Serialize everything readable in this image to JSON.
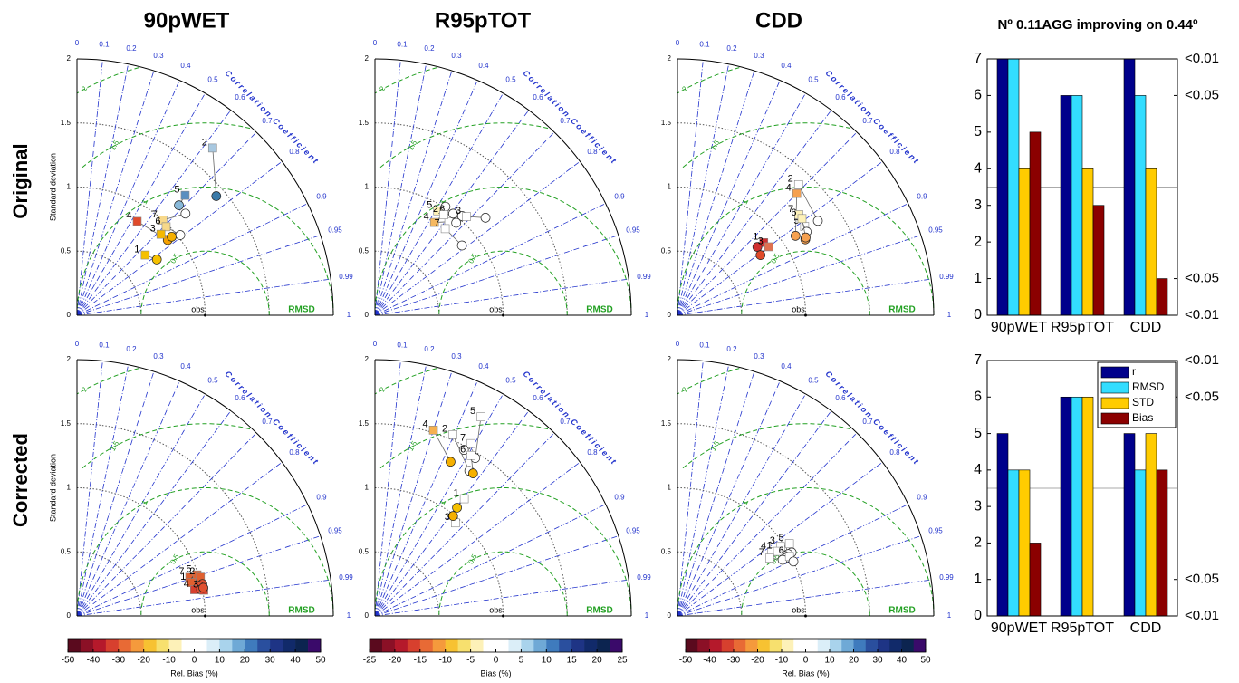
{
  "heading": "Nº 0.11AGG improving on 0.44º",
  "rows": [
    "Original",
    "Corrected"
  ],
  "taylor_axes": {
    "stdlim": [
      0,
      2
    ],
    "stdticks": [
      0,
      0.5,
      1,
      1.5,
      2
    ],
    "corrticks": [
      0,
      0.1,
      0.2,
      0.3,
      0.4,
      0.5,
      0.6,
      0.7,
      0.8,
      0.9,
      0.95,
      0.99,
      1
    ],
    "rmsd": [
      0.5,
      1,
      1.5,
      2
    ],
    "obs_std": 1,
    "obs_label": "obs",
    "rmsd_label": "RMSD",
    "corr_label": "Correlation Coefficient"
  },
  "colorbars": [
    {
      "label": "Rel. Bias (%)",
      "lim": [
        -50,
        50
      ],
      "ticks": [
        -50,
        -40,
        -30,
        -20,
        -10,
        0,
        10,
        20,
        30,
        40,
        50
      ],
      "colors": [
        "#5a0a1e",
        "#8b1026",
        "#b5192b",
        "#d7402e",
        "#e86a35",
        "#f59a3c",
        "#f7c232",
        "#f7e06e",
        "#fdf1b8",
        "#ffffff",
        "#ffffff",
        "#dbeef8",
        "#a9d3ec",
        "#6fa9d6",
        "#3f7bbd",
        "#2a4f9e",
        "#1e3485",
        "#112a6a",
        "#0c2450",
        "#3a0a6a"
      ]
    },
    {
      "label": "Bias (%)",
      "lim": [
        -25,
        25
      ],
      "ticks": [
        -25,
        -20,
        -15,
        -10,
        -5,
        0,
        5,
        10,
        15,
        20,
        25
      ],
      "colors": [
        "#5a0a1e",
        "#8b1026",
        "#b5192b",
        "#d7402e",
        "#e86a35",
        "#f59a3c",
        "#f7c232",
        "#f7e06e",
        "#fdf1b8",
        "#ffffff",
        "#ffffff",
        "#dbeef8",
        "#a9d3ec",
        "#6fa9d6",
        "#3f7bbd",
        "#2a4f9e",
        "#1e3485",
        "#112a6a",
        "#0c2450",
        "#3a0a6a"
      ]
    },
    {
      "label": "Rel. Bias (%)",
      "lim": [
        -50,
        50
      ],
      "ticks": [
        -50,
        -40,
        -30,
        -20,
        -10,
        0,
        10,
        20,
        30,
        40,
        50
      ],
      "colors": [
        "#5a0a1e",
        "#8b1026",
        "#b5192b",
        "#d7402e",
        "#e86a35",
        "#f59a3c",
        "#f7c232",
        "#f7e06e",
        "#fdf1b8",
        "#ffffff",
        "#ffffff",
        "#dbeef8",
        "#a9d3ec",
        "#6fa9d6",
        "#3f7bbd",
        "#2a4f9e",
        "#1e3485",
        "#112a6a",
        "#0c2450",
        "#3a0a6a"
      ]
    }
  ],
  "chart_data": [
    {
      "type": "taylor",
      "title": "90pWET",
      "ylabel": "Standard deviation",
      "models": [
        {
          "label": "2",
          "square": {
            "std": 1.68,
            "corr": 0.63,
            "color": "#a8c8e0"
          },
          "circle": {
            "std": 1.43,
            "corr": 0.76,
            "color": "#3a7aa8"
          }
        },
        {
          "label": "5",
          "square": {
            "std": 1.26,
            "corr": 0.67,
            "color": "#5a8fc0"
          },
          "circle": {
            "std": 1.17,
            "corr": 0.68,
            "color": "#88b8d8"
          }
        },
        {
          "label": "4",
          "square": {
            "std": 0.87,
            "corr": 0.54,
            "color": "#e04a2a"
          },
          "circle": {
            "std": 0.92,
            "corr": 0.77,
            "color": "#f5a000"
          }
        },
        {
          "label": "7",
          "square": {
            "std": 1.0,
            "corr": 0.67,
            "color": "#f7d88a"
          },
          "circle": {
            "std": 1.16,
            "corr": 0.73,
            "color": "#ffffff"
          }
        },
        {
          "label": "6",
          "square": {
            "std": 0.98,
            "corr": 0.71,
            "color": "#f7d88a"
          },
          "circle": {
            "std": 1.02,
            "corr": 0.79,
            "color": "#ffffff"
          }
        },
        {
          "label": "3",
          "square": {
            "std": 0.91,
            "corr": 0.72,
            "color": "#f5b800"
          },
          "circle": {
            "std": 0.96,
            "corr": 0.77,
            "color": "#f5b000"
          }
        },
        {
          "label": "1",
          "square": {
            "std": 0.71,
            "corr": 0.75,
            "color": "#f5c000"
          },
          "circle": {
            "std": 0.76,
            "corr": 0.82,
            "color": "#f5c000"
          }
        }
      ]
    },
    {
      "type": "taylor",
      "title": "R95pTOT",
      "models": [
        {
          "label": "5",
          "square": {
            "std": 0.95,
            "corr": 0.515,
            "color": "#fdf1b8"
          },
          "circle": {
            "std": 1.01,
            "corr": 0.545,
            "color": "#ffffff"
          }
        },
        {
          "label": "4",
          "square": {
            "std": 0.86,
            "corr": 0.54,
            "color": "#f5b860"
          },
          "circle": {
            "std": 0.94,
            "corr": 0.63,
            "color": "#ffffff"
          }
        },
        {
          "label": "6",
          "square": {
            "std": 0.98,
            "corr": 0.6,
            "color": "#ffffff"
          },
          "circle": {
            "std": 1.03,
            "corr": 0.66,
            "color": "#ffffff"
          }
        },
        {
          "label": "1",
          "square": {
            "std": 0.93,
            "corr": 0.62,
            "color": "#ffffff"
          },
          "circle": {
            "std": 0.96,
            "corr": 0.66,
            "color": "#ffffff"
          }
        },
        {
          "label": "7",
          "square": {
            "std": 0.87,
            "corr": 0.63,
            "color": "#ffffff"
          },
          "circle": {
            "std": 0.87,
            "corr": 0.78,
            "color": "#ffffff"
          }
        },
        {
          "label": "2",
          "square": {
            "std": 0.95,
            "corr": 0.565,
            "color": "#ffffff"
          },
          "circle": {
            "std": 1.0,
            "corr": 0.61,
            "color": "#ffffff"
          }
        },
        {
          "label": "3",
          "square": {
            "std": 1.05,
            "corr": 0.68,
            "color": "#ffffff"
          },
          "circle": {
            "std": 1.15,
            "corr": 0.75,
            "color": "#ffffff"
          }
        }
      ]
    },
    {
      "type": "taylor",
      "title": "CDD",
      "models": [
        {
          "label": "2",
          "square": {
            "std": 1.39,
            "corr": 0.68,
            "color": "#ffffff"
          },
          "circle": {
            "std": 1.32,
            "corr": 0.83,
            "color": "#ffffff"
          }
        },
        {
          "label": "4",
          "square": {
            "std": 1.33,
            "corr": 0.7,
            "color": "#f5a050"
          },
          "circle": {
            "std": 1.11,
            "corr": 0.83,
            "color": "#f5a050"
          }
        },
        {
          "label": "5",
          "square": {
            "std": 1.21,
            "corr": 0.82,
            "color": "#ffffff"
          },
          "circle": {
            "std": 1.16,
            "corr": 0.86,
            "color": "#f5a050"
          }
        },
        {
          "label": "7",
          "square": {
            "std": 1.23,
            "corr": 0.77,
            "color": "#fdf1b8"
          },
          "circle": {
            "std": 1.2,
            "corr": 0.84,
            "color": "#ffffff"
          }
        },
        {
          "label": "6",
          "square": {
            "std": 1.23,
            "corr": 0.79,
            "color": "#fdf1b8"
          },
          "circle": {
            "std": 1.17,
            "corr": 0.855,
            "color": "#f5a050"
          }
        },
        {
          "label": "1",
          "square": {
            "std": 0.88,
            "corr": 0.765,
            "color": "#d03030"
          },
          "circle": {
            "std": 0.82,
            "corr": 0.76,
            "color": "#d03030"
          }
        },
        {
          "label": "3",
          "square": {
            "std": 0.89,
            "corr": 0.8,
            "color": "#e07050"
          },
          "circle": {
            "std": 0.8,
            "corr": 0.81,
            "color": "#e04a2a"
          }
        }
      ]
    },
    {
      "type": "taylor",
      "ylabel": "Standard deviation",
      "models": [
        {
          "label": "7",
          "square": {
            "std": 0.93,
            "corr": 0.946,
            "color": "#e06030"
          },
          "circle": {
            "std": 0.97,
            "corr": 0.957,
            "color": "#e05030"
          }
        },
        {
          "label": "5",
          "square": {
            "std": 0.99,
            "corr": 0.946,
            "color": "#e06030"
          },
          "circle": {
            "std": 1.0,
            "corr": 0.963,
            "color": "#e05030"
          }
        },
        {
          "label": "2",
          "square": {
            "std": 1.01,
            "corr": 0.954,
            "color": "#e06030"
          },
          "circle": {
            "std": 1.01,
            "corr": 0.969,
            "color": "#e05030"
          }
        },
        {
          "label": "1",
          "square": {
            "std": 0.93,
            "corr": 0.96,
            "color": "#e06030"
          },
          "circle": {
            "std": 0.98,
            "corr": 0.971,
            "color": "#e05030"
          }
        },
        {
          "label": "4",
          "square": {
            "std": 0.94,
            "corr": 0.976,
            "color": "#d7402e"
          },
          "circle": {
            "std": 0.99,
            "corr": 0.978,
            "color": "#e05030"
          }
        },
        {
          "label": "3",
          "square": {
            "std": 1.01,
            "corr": 0.98,
            "color": "#d7402e"
          },
          "circle": {
            "std": 1.01,
            "corr": 0.976,
            "color": "#e05030"
          }
        }
      ]
    },
    {
      "type": "taylor",
      "models": [
        {
          "label": "2",
          "square": {
            "std": 1.54,
            "corr": 0.395,
            "color": "#ffffff"
          },
          "circle": {
            "std": 1.35,
            "corr": 0.545,
            "color": "#ffffff"
          }
        },
        {
          "label": "5",
          "square": {
            "std": 1.76,
            "corr": 0.47,
            "color": "#ffffff"
          },
          "circle": {
            "std": 1.46,
            "corr": 0.536,
            "color": "#ffffff"
          }
        },
        {
          "label": "4",
          "square": {
            "std": 1.52,
            "corr": 0.3,
            "color": "#f5b050"
          },
          "circle": {
            "std": 1.34,
            "corr": 0.44,
            "color": "#f5b000"
          }
        },
        {
          "label": "7",
          "square": {
            "std": 1.54,
            "corr": 0.487,
            "color": "#ffffff"
          },
          "circle": {
            "std": 1.47,
            "corr": 0.472,
            "color": "#ffffff"
          }
        },
        {
          "label": "6",
          "square": {
            "std": 1.46,
            "corr": 0.514,
            "color": "#ffffff"
          },
          "circle": {
            "std": 1.35,
            "corr": 0.567,
            "color": "#f5b000"
          }
        },
        {
          "label": "1",
          "square": {
            "std": 1.15,
            "corr": 0.606,
            "color": "#ffffff"
          },
          "circle": {
            "std": 1.06,
            "corr": 0.604,
            "color": "#f5c000"
          }
        },
        {
          "label": "3",
          "square": {
            "std": 0.96,
            "corr": 0.654,
            "color": "#ffffff"
          },
          "circle": {
            "std": 0.99,
            "corr": 0.616,
            "color": "#f5b000"
          }
        }
      ]
    },
    {
      "type": "taylor",
      "models": [
        {
          "label": "5",
          "square": {
            "std": 1.04,
            "corr": 0.84,
            "color": "#ffffff"
          },
          "circle": {
            "std": 1.02,
            "corr": 0.874,
            "color": "#ffffff"
          }
        },
        {
          "label": "3",
          "square": {
            "std": 0.97,
            "corr": 0.829,
            "color": "#ffffff"
          },
          "circle": {
            "std": 0.99,
            "corr": 0.873,
            "color": "#ffffff"
          }
        },
        {
          "label": "4",
          "square": {
            "std": 0.89,
            "corr": 0.826,
            "color": "#ffffff"
          },
          "circle": {
            "std": 0.96,
            "corr": 0.873,
            "color": "#ffffff"
          }
        },
        {
          "label": "1",
          "square": {
            "std": 0.93,
            "corr": 0.84,
            "color": "#ffffff"
          },
          "circle": {
            "std": 0.96,
            "corr": 0.882,
            "color": "#ffffff"
          }
        },
        {
          "label": "7",
          "square": {
            "std": 0.85,
            "corr": 0.847,
            "color": "#ffffff"
          },
          "circle": {
            "std": 0.93,
            "corr": 0.882,
            "color": "#ffffff"
          }
        },
        {
          "label": "6",
          "square": {
            "std": 0.99,
            "corr": 0.883,
            "color": "#ffffff"
          },
          "circle": {
            "std": 1.0,
            "corr": 0.905,
            "color": "#ffffff"
          }
        }
      ]
    },
    {
      "type": "bar",
      "categories": [
        "90pWET",
        "R95pTOT",
        "CDD"
      ],
      "ylim": [
        0,
        7
      ],
      "yticks": [
        0,
        1,
        2,
        3,
        4,
        5,
        6,
        7
      ],
      "y2lim": [
        0,
        7
      ],
      "y2ticks": [
        {
          "value": 7,
          "label": "<0.01"
        },
        {
          "value": 6,
          "label": "<0.05"
        },
        {
          "value": 1,
          "label": "<0.05"
        },
        {
          "value": 0,
          "label": "<0.01"
        }
      ],
      "reference_line": 3.5,
      "legend": false,
      "series": [
        {
          "color": "#00008b",
          "values": [
            7,
            6,
            7
          ]
        },
        {
          "color": "#33ddff",
          "values": [
            7,
            6,
            6
          ]
        },
        {
          "color": "#ffcc00",
          "values": [
            4,
            4,
            4
          ]
        },
        {
          "color": "#8b0000",
          "values": [
            5,
            3,
            1
          ]
        }
      ]
    },
    {
      "type": "bar",
      "categories": [
        "90pWET",
        "R95pTOT",
        "CDD"
      ],
      "ylim": [
        0,
        7
      ],
      "yticks": [
        0,
        1,
        2,
        3,
        4,
        5,
        6,
        7
      ],
      "y2lim": [
        0,
        7
      ],
      "y2ticks": [
        {
          "value": 7,
          "label": "<0.01"
        },
        {
          "value": 6,
          "label": "<0.05"
        },
        {
          "value": 1,
          "label": "<0.05"
        },
        {
          "value": 0,
          "label": "<0.01"
        }
      ],
      "reference_line": 3.5,
      "legend": "upper right",
      "series": [
        {
          "name": "r",
          "color": "#00008b",
          "values": [
            5,
            6,
            5
          ]
        },
        {
          "name": "RMSD",
          "color": "#33ddff",
          "values": [
            4,
            6,
            4
          ]
        },
        {
          "name": "STD",
          "color": "#ffcc00",
          "values": [
            4,
            6,
            5
          ]
        },
        {
          "name": "Bias",
          "color": "#8b0000",
          "values": [
            2,
            0,
            4
          ]
        }
      ]
    }
  ]
}
